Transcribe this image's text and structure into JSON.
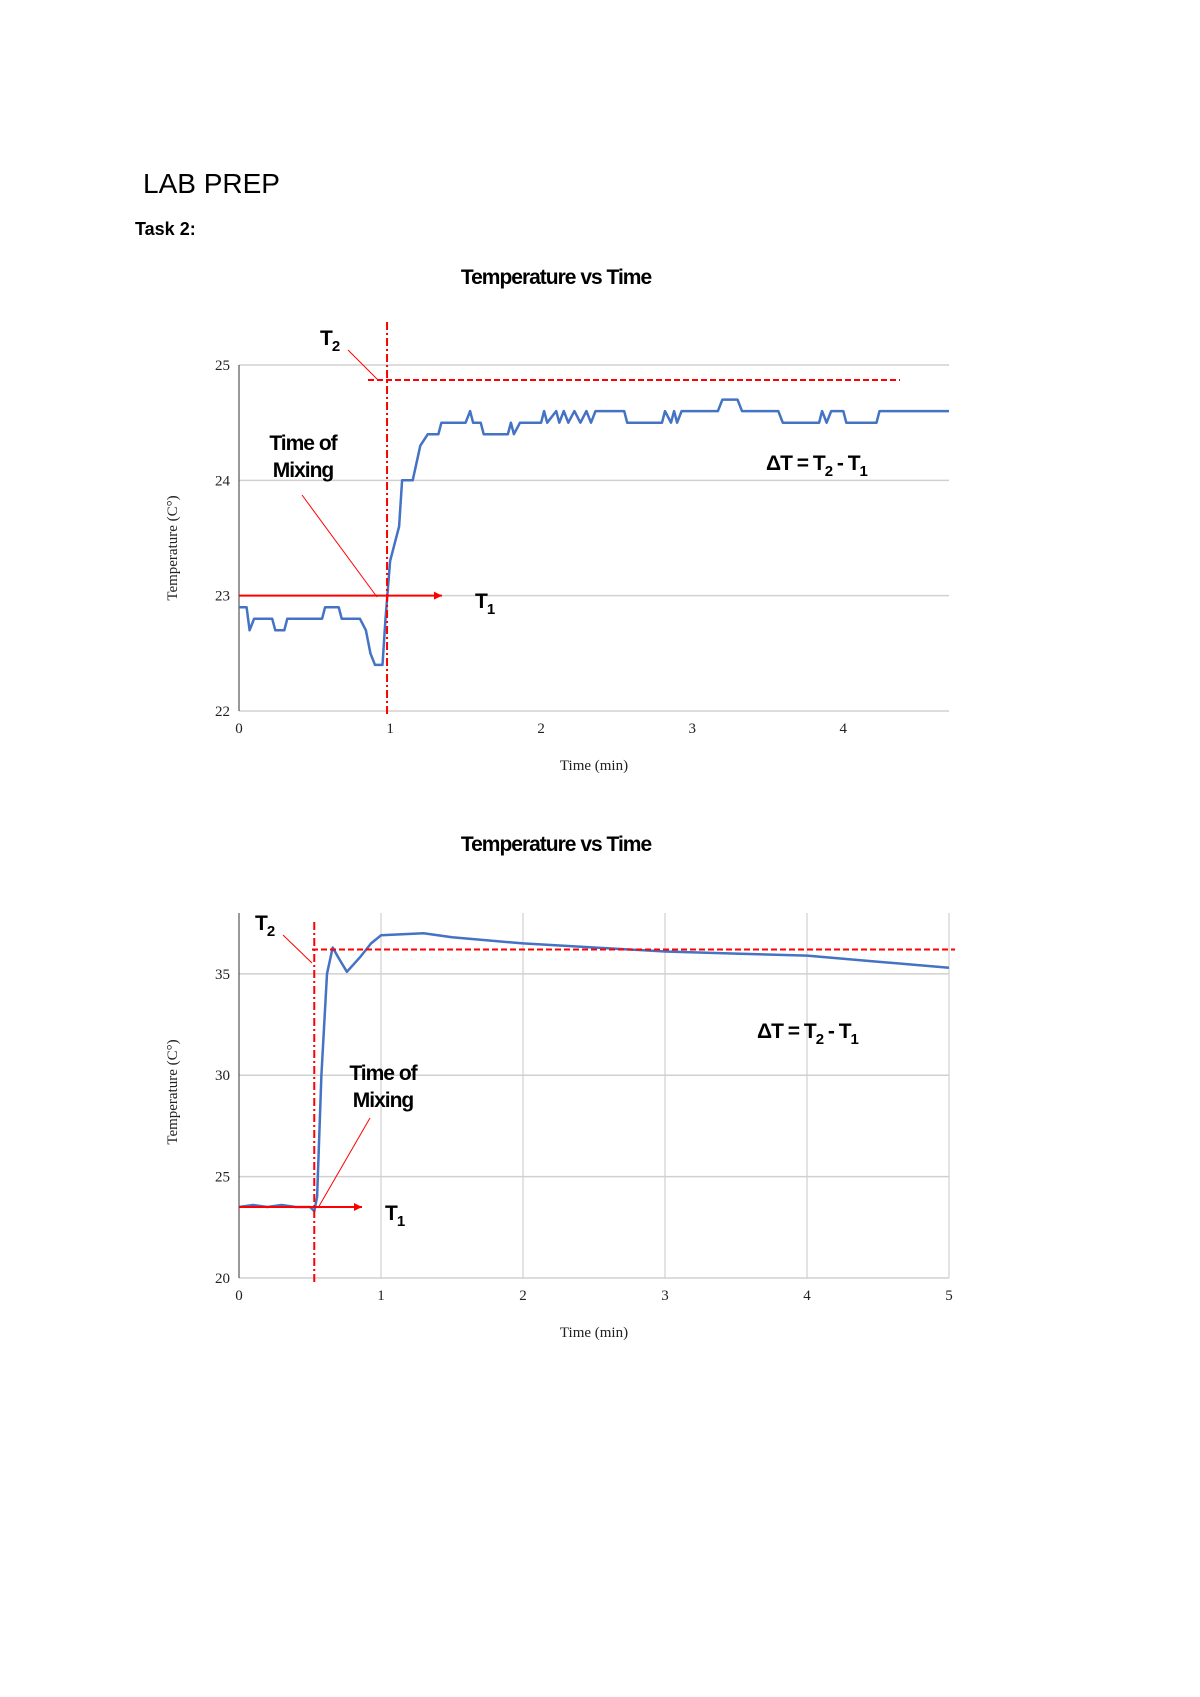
{
  "header": {
    "title": "LAB PREP",
    "task": "Task 2:"
  },
  "colors": {
    "series": "#4472C4",
    "annotation": "#FF0000",
    "grid": "#D0D0D0"
  },
  "chart_data": [
    {
      "type": "line",
      "title": "Temperature vs Time",
      "xlabel": "Time (min)",
      "ylabel": "Temperature (C°)",
      "xlim": [
        0,
        4.7
      ],
      "ylim": [
        22,
        25
      ],
      "xticks": [
        0,
        1,
        2,
        3,
        4
      ],
      "yticks": [
        22,
        23,
        24,
        25
      ],
      "grid": "horizontal",
      "annotations": {
        "t1_label": "T",
        "t1_sub": "1",
        "t2_label": "T",
        "t2_sub": "2",
        "mixing_line1": "Time of",
        "mixing_line2": "Mixing",
        "delta": "ΔT = T",
        "delta_sub2": "2",
        "delta_mid": " - T",
        "delta_sub1": "1",
        "t1_value": 23.0,
        "t2_value": 24.87,
        "mixing_time": 0.98
      },
      "x": [
        0,
        0.05,
        0.07,
        0.1,
        0.22,
        0.24,
        0.3,
        0.32,
        0.55,
        0.57,
        0.66,
        0.68,
        0.8,
        0.84,
        0.87,
        0.9,
        0.95,
        0.97,
        1.0,
        1.06,
        1.08,
        1.15,
        1.2,
        1.25,
        1.32,
        1.34,
        1.5,
        1.53,
        1.55,
        1.6,
        1.62,
        1.78,
        1.8,
        1.82,
        1.86,
        2.0,
        2.02,
        2.04,
        2.1,
        2.12,
        2.15,
        2.18,
        2.22,
        2.26,
        2.3,
        2.33,
        2.36,
        2.55,
        2.57,
        2.8,
        2.82,
        2.86,
        2.88,
        2.9,
        2.93,
        3.17,
        3.2,
        3.3,
        3.33,
        3.57,
        3.6,
        3.84,
        3.86,
        3.89,
        3.92,
        4.0,
        4.02,
        4.22,
        4.24,
        4.7
      ],
      "y": [
        22.9,
        22.9,
        22.7,
        22.8,
        22.8,
        22.7,
        22.7,
        22.8,
        22.8,
        22.9,
        22.9,
        22.8,
        22.8,
        22.7,
        22.5,
        22.4,
        22.4,
        22.8,
        23.3,
        23.6,
        24.0,
        24.0,
        24.3,
        24.4,
        24.4,
        24.5,
        24.5,
        24.6,
        24.5,
        24.5,
        24.4,
        24.4,
        24.5,
        24.4,
        24.5,
        24.5,
        24.6,
        24.5,
        24.6,
        24.5,
        24.6,
        24.5,
        24.6,
        24.5,
        24.6,
        24.5,
        24.6,
        24.6,
        24.5,
        24.5,
        24.6,
        24.5,
        24.6,
        24.5,
        24.6,
        24.6,
        24.7,
        24.7,
        24.6,
        24.6,
        24.5,
        24.5,
        24.6,
        24.5,
        24.6,
        24.6,
        24.5,
        24.5,
        24.6,
        24.6
      ]
    },
    {
      "type": "line",
      "title": "Temperature vs Time",
      "xlabel": "Time (min)",
      "ylabel": "Temperature (C°)",
      "xlim": [
        0,
        5
      ],
      "ylim": [
        20,
        38
      ],
      "xticks": [
        0,
        1,
        2,
        3,
        4,
        5
      ],
      "yticks": [
        20,
        25,
        30,
        35
      ],
      "grid": "both",
      "annotations": {
        "t1_label": "T",
        "t1_sub": "1",
        "t2_label": "T",
        "t2_sub": "2",
        "mixing_line1": "Time of",
        "mixing_line2": "Mixing",
        "delta": "ΔT = T",
        "delta_sub2": "2",
        "delta_mid": " - T",
        "delta_sub1": "1",
        "t1_value": 23.5,
        "t2_value": 36.2,
        "mixing_time": 0.53
      },
      "x": [
        0,
        0.1,
        0.2,
        0.3,
        0.4,
        0.5,
        0.53,
        0.55,
        0.58,
        0.62,
        0.66,
        0.7,
        0.76,
        0.85,
        0.93,
        1.0,
        1.3,
        1.5,
        2.0,
        2.5,
        3.0,
        3.5,
        4.0,
        4.5,
        5.0
      ],
      "y": [
        23.5,
        23.6,
        23.5,
        23.6,
        23.5,
        23.5,
        23.3,
        24.0,
        30.0,
        35.0,
        36.3,
        35.8,
        35.1,
        35.8,
        36.5,
        36.9,
        37.0,
        36.8,
        36.5,
        36.3,
        36.1,
        36.0,
        35.9,
        35.6,
        35.3
      ]
    }
  ]
}
